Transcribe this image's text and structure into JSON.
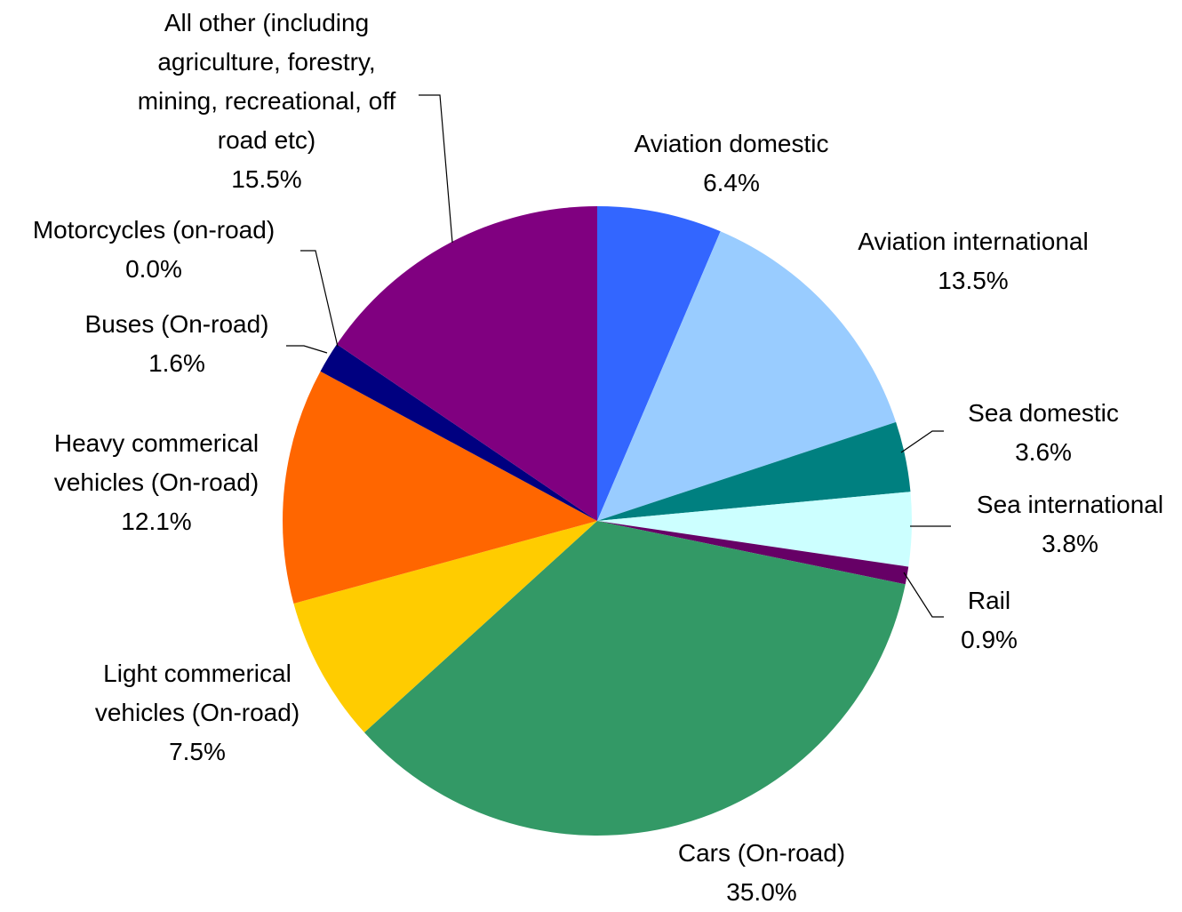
{
  "chart_data": {
    "type": "pie",
    "title": "",
    "start_angle_deg": 0,
    "direction": "clockwise",
    "slices": [
      {
        "label": [
          "Aviation domestic"
        ],
        "value_label": "6.4%",
        "value": 6.4,
        "color": "#3366ff"
      },
      {
        "label": [
          "Aviation international"
        ],
        "value_label": "13.5%",
        "value": 13.5,
        "color": "#99ccff"
      },
      {
        "label": [
          "Sea domestic"
        ],
        "value_label": "3.6%",
        "value": 3.6,
        "color": "#008080"
      },
      {
        "label": [
          "Sea international"
        ],
        "value_label": "3.8%",
        "value": 3.8,
        "color": "#ccffff"
      },
      {
        "label": [
          "Rail"
        ],
        "value_label": "0.9%",
        "value": 0.9,
        "color": "#660066"
      },
      {
        "label": [
          "Cars (On-road)"
        ],
        "value_label": "35.0%",
        "value": 35.0,
        "color": "#339966"
      },
      {
        "label": [
          "Light commerical",
          "vehicles (On-road)"
        ],
        "value_label": "7.5%",
        "value": 7.5,
        "color": "#ffcc00"
      },
      {
        "label": [
          "Heavy commerical",
          "vehicles (On-road)"
        ],
        "value_label": "12.1%",
        "value": 12.1,
        "color": "#ff6600"
      },
      {
        "label": [
          "Buses (On-road)"
        ],
        "value_label": "1.6%",
        "value": 1.6,
        "color": "#000080"
      },
      {
        "label": [
          "Motorcycles (on-road)"
        ],
        "value_label": "0.0%",
        "value": 0.0,
        "color": "#cc99ff"
      },
      {
        "label": [
          "All other (including",
          "agriculture, forestry,",
          "mining, recreational, off",
          "road etc)"
        ],
        "value_label": "15.5%",
        "value": 15.5,
        "color": "#800080"
      }
    ]
  }
}
